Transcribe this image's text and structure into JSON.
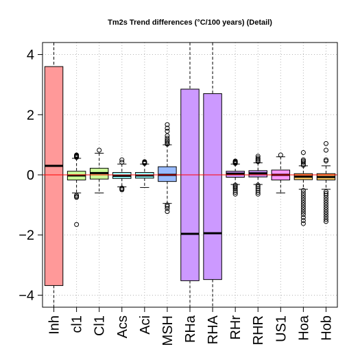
{
  "chart_data": {
    "type": "boxplot",
    "title": "Tm2s Trend differences (°C/100 years) (Detail)",
    "xlabel": "",
    "ylabel": "",
    "ylim": [
      -4.4,
      4.4
    ],
    "yticks": [
      -4,
      -2,
      0,
      2,
      4
    ],
    "grid": true,
    "reference_line": {
      "y": 0,
      "color": "#ff0000"
    },
    "categories": [
      "Inh",
      "cl1",
      "Cl1",
      "Acs",
      "Aci",
      "MSH",
      "RHa",
      "RHA",
      "RHr",
      "RHR",
      "US1",
      "Hoa",
      "Hob"
    ],
    "boxes": [
      {
        "name": "Inh",
        "color": "#ff9999",
        "q1": -3.68,
        "median": 0.3,
        "q3": 3.6,
        "whisker_low": -4.4,
        "whisker_high": 4.4,
        "outliers": []
      },
      {
        "name": "cl1",
        "color": "#ccff99",
        "q1": -0.17,
        "median": -0.02,
        "q3": 0.12,
        "whisker_low": -0.6,
        "whisker_high": 0.55,
        "outliers": [
          0.58,
          0.6,
          0.62,
          0.64,
          0.66,
          -0.68,
          -0.72,
          -0.75,
          -1.65
        ]
      },
      {
        "name": "Cl1",
        "color": "#ccff99",
        "q1": -0.14,
        "median": 0.06,
        "q3": 0.22,
        "whisker_low": -0.6,
        "whisker_high": 0.72,
        "outliers": [
          0.82
        ]
      },
      {
        "name": "Acs",
        "color": "#99ffff",
        "q1": -0.12,
        "median": -0.03,
        "q3": 0.08,
        "whisker_low": -0.4,
        "whisker_high": 0.36,
        "outliers": [
          0.42,
          0.5,
          -0.44,
          -0.47,
          -0.5
        ]
      },
      {
        "name": "Aci",
        "color": "#99ffff",
        "q1": -0.11,
        "median": -0.02,
        "q3": 0.08,
        "whisker_low": -0.42,
        "whisker_high": 0.36,
        "outliers": [
          0.38,
          0.4,
          0.42,
          0.44
        ]
      },
      {
        "name": "MSH",
        "color": "#99bbff",
        "q1": -0.22,
        "median": 0.0,
        "q3": 0.27,
        "whisker_low": -0.95,
        "whisker_high": 1.0,
        "outliers": [
          1.02,
          1.05,
          1.1,
          1.15,
          1.22,
          1.3,
          1.45,
          1.55,
          1.67,
          -1.0,
          -1.05,
          -1.12,
          -1.22
        ]
      },
      {
        "name": "RHa",
        "color": "#cc99ff",
        "q1": -3.52,
        "median": -1.96,
        "q3": 2.85,
        "whisker_low": -4.4,
        "whisker_high": 4.4,
        "outliers": []
      },
      {
        "name": "RHA",
        "color": "#cc99ff",
        "q1": -3.48,
        "median": -1.94,
        "q3": 2.7,
        "whisker_low": -4.4,
        "whisker_high": 4.4,
        "outliers": []
      },
      {
        "name": "RHr",
        "color": "#cc99ff",
        "q1": -0.08,
        "median": 0.04,
        "q3": 0.12,
        "whisker_low": -0.32,
        "whisker_high": 0.36,
        "outliers": [
          0.38,
          0.4,
          0.42,
          0.44,
          0.46,
          -0.34,
          -0.38,
          -0.42,
          -0.46,
          -0.52,
          -0.58,
          -0.64
        ]
      },
      {
        "name": "RHR",
        "color": "#cc99ff",
        "q1": -0.07,
        "median": 0.05,
        "q3": 0.14,
        "whisker_low": -0.32,
        "whisker_high": 0.4,
        "outliers": [
          0.44,
          0.48,
          0.52,
          0.56,
          0.62,
          -0.34,
          -0.4,
          -0.46,
          -0.52,
          -0.58,
          -0.64
        ]
      },
      {
        "name": "US1",
        "color": "#ff99ff",
        "q1": -0.17,
        "median": 0.0,
        "q3": 0.16,
        "whisker_low": -0.6,
        "whisker_high": 0.6,
        "outliers": [
          0.66
        ]
      },
      {
        "name": "Hoa",
        "color": "#ffcc66",
        "q1": -0.16,
        "median": -0.06,
        "q3": 0.04,
        "whisker_low": -0.48,
        "whisker_high": 0.3,
        "outliers": [
          0.32,
          0.36,
          0.42,
          0.46,
          0.5,
          0.74,
          -0.52,
          -0.6,
          -0.68,
          -0.76,
          -0.84,
          -0.92,
          -1.0,
          -1.08,
          -1.16,
          -1.24,
          -1.32,
          -1.42,
          -1.52,
          -1.62
        ]
      },
      {
        "name": "Hob",
        "color": "#ffcc66",
        "q1": -0.17,
        "median": -0.07,
        "q3": 0.04,
        "whisker_low": -0.48,
        "whisker_high": 0.3,
        "outliers": [
          0.46,
          0.5,
          0.82,
          1.04,
          -0.56,
          -0.62,
          -0.68,
          -0.76,
          -0.84,
          -0.92,
          -1.0,
          -1.08,
          -1.16,
          -1.24,
          -1.32,
          -1.4,
          -1.48,
          -1.55
        ]
      }
    ]
  }
}
